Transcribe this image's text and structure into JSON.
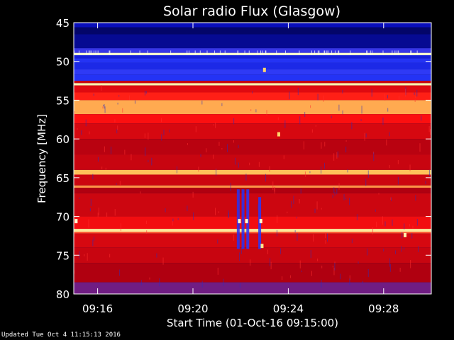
{
  "chart_data": {
    "type": "heatmap",
    "title": "Solar radio Flux (Glasgow)",
    "xlabel": "Start Time (01-Oct-16 09:15:00)",
    "ylabel": "Frequency [MHz]",
    "x_tick_labels": [
      "09:16",
      "09:20",
      "09:24",
      "09:28"
    ],
    "x_tick_minutes": [
      1,
      5,
      9,
      13
    ],
    "xlim_minutes": [
      0,
      15
    ],
    "y_tick_labels": [
      "45",
      "50",
      "55",
      "60",
      "65",
      "70",
      "75",
      "80"
    ],
    "ylim": [
      45,
      80
    ],
    "colormap": [
      "#000040",
      "#0a10c8",
      "#2a3cff",
      "#b00010",
      "#ff1010",
      "#ffd060",
      "#ffffd0"
    ],
    "frequency_bands": [
      {
        "from": 45.0,
        "to": 45.6,
        "level": 0.15
      },
      {
        "from": 45.6,
        "to": 46.5,
        "level": 0.05
      },
      {
        "from": 46.5,
        "to": 48.3,
        "level": 0.1
      },
      {
        "from": 48.3,
        "to": 48.9,
        "level": 0.35
      },
      {
        "from": 48.9,
        "to": 49.2,
        "level": 1.0
      },
      {
        "from": 49.2,
        "to": 49.6,
        "level": 0.22
      },
      {
        "from": 49.6,
        "to": 50.2,
        "level": 0.3
      },
      {
        "from": 50.2,
        "to": 51.0,
        "level": 0.26
      },
      {
        "from": 51.0,
        "to": 51.7,
        "level": 0.34
      },
      {
        "from": 51.7,
        "to": 52.5,
        "level": 0.3
      },
      {
        "from": 52.5,
        "to": 52.8,
        "level": 0.55
      },
      {
        "from": 52.8,
        "to": 53.1,
        "level": 0.95
      },
      {
        "from": 53.1,
        "to": 54.0,
        "level": 0.6
      },
      {
        "from": 54.0,
        "to": 55.0,
        "level": 0.68
      },
      {
        "from": 55.0,
        "to": 56.8,
        "level": 0.8
      },
      {
        "from": 56.8,
        "to": 58.0,
        "level": 0.66
      },
      {
        "from": 58.0,
        "to": 60.0,
        "level": 0.58
      },
      {
        "from": 60.0,
        "to": 62.0,
        "level": 0.52
      },
      {
        "from": 62.0,
        "to": 64.0,
        "level": 0.55
      },
      {
        "from": 64.0,
        "to": 64.6,
        "level": 0.82
      },
      {
        "from": 64.6,
        "to": 66.0,
        "level": 0.56
      },
      {
        "from": 66.0,
        "to": 66.3,
        "level": 0.78
      },
      {
        "from": 66.3,
        "to": 67.0,
        "level": 0.5
      },
      {
        "from": 67.0,
        "to": 70.0,
        "level": 0.56
      },
      {
        "from": 70.0,
        "to": 71.6,
        "level": 0.64
      },
      {
        "from": 71.6,
        "to": 72.0,
        "level": 0.92
      },
      {
        "from": 72.0,
        "to": 72.2,
        "level": 0.72
      },
      {
        "from": 72.2,
        "to": 74.0,
        "level": 0.58
      },
      {
        "from": 74.0,
        "to": 76.0,
        "level": 0.55
      },
      {
        "from": 76.0,
        "to": 78.5,
        "level": 0.5
      },
      {
        "from": 78.5,
        "to": 80.0,
        "level": 0.42
      }
    ],
    "burst_events": [
      {
        "minute": 6.9,
        "freq_from": 66.5,
        "freq_to": 74.2,
        "level": 0.3
      },
      {
        "minute": 7.1,
        "freq_from": 66.5,
        "freq_to": 74.2,
        "level": 0.3
      },
      {
        "minute": 7.3,
        "freq_from": 66.5,
        "freq_to": 74.2,
        "level": 0.32
      },
      {
        "minute": 7.8,
        "freq_from": 67.5,
        "freq_to": 74.2,
        "level": 0.32
      }
    ],
    "hot_pixels": [
      {
        "minute": 0.1,
        "freq": 70.6,
        "level": 1.0
      },
      {
        "minute": 6.95,
        "freq": 70.6,
        "level": 1.0
      },
      {
        "minute": 7.25,
        "freq": 70.6,
        "level": 1.0
      },
      {
        "minute": 7.85,
        "freq": 70.6,
        "level": 1.0
      },
      {
        "minute": 7.9,
        "freq": 73.8,
        "level": 0.9
      },
      {
        "minute": 8.6,
        "freq": 59.4,
        "level": 0.85
      },
      {
        "minute": 8.0,
        "freq": 51.1,
        "level": 0.85
      },
      {
        "minute": 13.9,
        "freq": 72.4,
        "level": 0.95
      }
    ]
  },
  "footer": {
    "updated": "Updated Tue Oct  4 11:15:13 2016"
  }
}
